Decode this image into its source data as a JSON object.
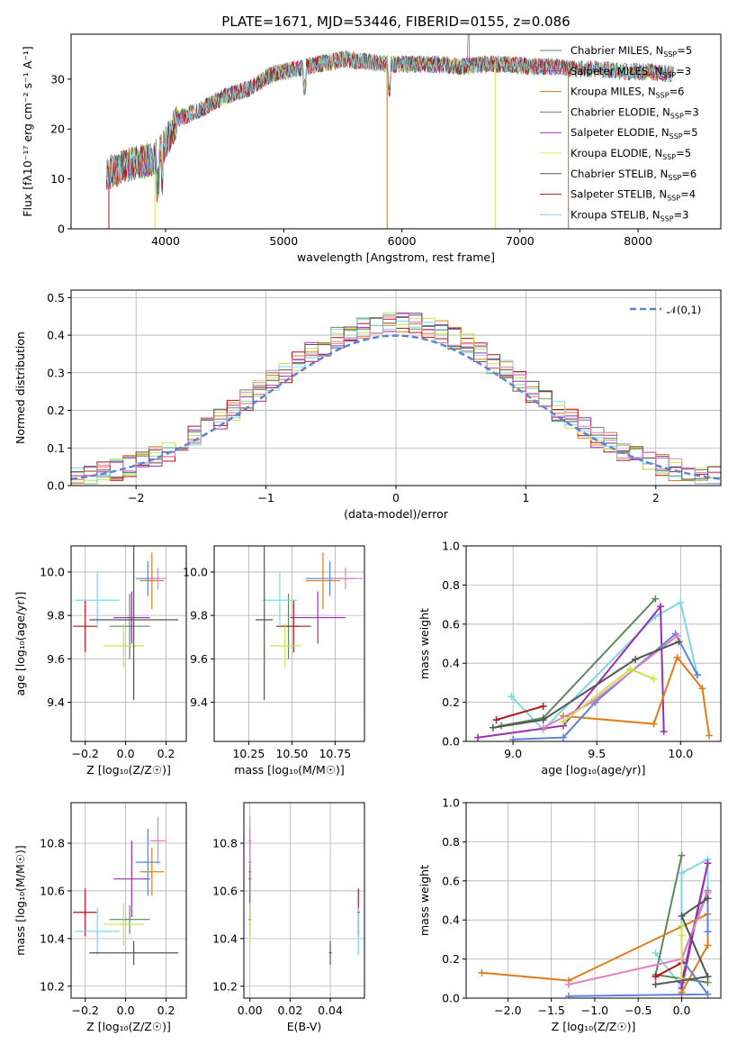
{
  "title": "PLATE=1671, MJD=53446, FIBERID=0155, z=0.086",
  "colors": {
    "c1": "#5c8a5c",
    "c2": "#9b2eb0",
    "c3": "#e07b1a",
    "c4": "#5c8a5c",
    "c5": "#9b2eb0",
    "c6": "#c9e34a",
    "c7": "#555555",
    "c8": "#b3121a",
    "c9": "#7fd6e4",
    "blue": "#5b84d6",
    "pink": "#e37fbf",
    "dash": "#5b84d6"
  },
  "chart_data": [
    {
      "id": "spectrum",
      "type": "line",
      "title": "PLATE=1671, MJD=53446, FIBERID=0155, z=0.086",
      "xlabel": "wavelength [Angstrom, rest frame]",
      "ylabel": "Flux [fλ10⁻¹⁷ erg cm⁻² s⁻¹ A⁻¹]",
      "xlim": [
        3200,
        8700
      ],
      "ylim": [
        0,
        39
      ],
      "xticks": [
        "4000",
        "5000",
        "6000",
        "7000",
        "8000"
      ],
      "yticks": [
        "0",
        "10",
        "20",
        "30"
      ],
      "grid": false,
      "legend_position": "top-right",
      "series": [
        {
          "name": "Chabrier MILES, N_SSP=5",
          "color": "#5c8a5c"
        },
        {
          "name": "Salpeter MILES, N_SSP=3",
          "color": "#9b2eb0"
        },
        {
          "name": "Kroupa MILES, N_SSP=6",
          "color": "#b3821a"
        },
        {
          "name": "Chabrier ELODIE, N_SSP=3",
          "color": "#5c8a5c"
        },
        {
          "name": "Salpeter ELODIE, N_SSP=5",
          "color": "#9b2eb0"
        },
        {
          "name": "Kroupa ELODIE, N_SSP=5",
          "color": "#e0e05a"
        },
        {
          "name": "Chabrier STELIB, N_SSP=6",
          "color": "#555555"
        },
        {
          "name": "Salpeter STELIB, N_SSP=4",
          "color": "#b3121a"
        },
        {
          "name": "Kroupa STELIB, N_SSP=3",
          "color": "#7fd6e4"
        }
      ],
      "continuum": {
        "x": [
          3500,
          3700,
          3900,
          4000,
          4100,
          4300,
          4500,
          4700,
          4900,
          5100,
          5300,
          5500,
          5700,
          5900,
          6100,
          6300,
          6500,
          6700,
          6900,
          7100,
          7300,
          7500,
          7700,
          7900,
          8100,
          8300
        ],
        "y": [
          11,
          13,
          14,
          17,
          22,
          24,
          26.5,
          28,
          31,
          32,
          33,
          34,
          33.5,
          33,
          33,
          33,
          32.5,
          33,
          33,
          32.5,
          32.5,
          32,
          32,
          31.5,
          31.5,
          31
        ]
      }
    },
    {
      "id": "residuals",
      "type": "bar",
      "xlabel": "(data-model)/error",
      "ylabel": "Normed distribution",
      "xlim": [
        -2.5,
        2.5
      ],
      "ylim": [
        0,
        0.52
      ],
      "xticks": [
        "−2",
        "−1",
        "0",
        "1",
        "2"
      ],
      "yticks": [
        "0.0",
        "0.1",
        "0.2",
        "0.3",
        "0.4",
        "0.5"
      ],
      "grid": true,
      "legend_position": "top-right",
      "legend": "𝒩(0,1)",
      "bin_width": 0.1,
      "bins_start": -2.5
    },
    {
      "id": "age-vs-Z",
      "type": "scatter",
      "xlabel": "Z [log₁₀(Z/Z☉)]",
      "ylabel": "age  [log₁₀(age/yr)]",
      "xlim": [
        -0.27,
        0.3
      ],
      "ylim": [
        9.22,
        10.12
      ],
      "xticks": [
        "−0.2",
        "0.0",
        "0.2"
      ],
      "yticks": [
        "9.4",
        "9.6",
        "9.8",
        "10.0"
      ],
      "grid": true
    },
    {
      "id": "age-vs-mass",
      "type": "scatter",
      "xlabel": "mass [log₁₀(M/M☉)]",
      "xlim": [
        10.05,
        10.92
      ],
      "ylim": [
        9.22,
        10.12
      ],
      "xticks": [
        "10.25",
        "10.50",
        "10.75"
      ],
      "yticks": [
        "9.4",
        "9.6",
        "9.8",
        "10.0"
      ],
      "grid": true
    },
    {
      "id": "weight-vs-age",
      "type": "line",
      "xlabel": "age  [log₁₀(age/yr)]",
      "ylabel": "mass weight",
      "xlim": [
        8.72,
        10.24
      ],
      "ylim": [
        0,
        1
      ],
      "xticks": [
        "9.0",
        "9.5",
        "10.0"
      ],
      "yticks": [
        "0.0",
        "0.2",
        "0.4",
        "0.6",
        "0.8",
        "1.0"
      ],
      "grid": true
    },
    {
      "id": "mass-vs-Z",
      "type": "scatter",
      "xlabel": "Z [log₁₀(Z/Z☉)]",
      "ylabel": "mass [log₁₀(M/M☉)]",
      "xlim": [
        -0.27,
        0.3
      ],
      "ylim": [
        10.15,
        10.97
      ],
      "xticks": [
        "−0.2",
        "0.0",
        "0.2"
      ],
      "yticks": [
        "10.2",
        "10.4",
        "10.6",
        "10.8"
      ],
      "grid": true
    },
    {
      "id": "mass-vs-ebv",
      "type": "scatter",
      "xlabel": "E(B-V)",
      "xlim": [
        -0.003,
        0.057
      ],
      "ylim": [
        10.15,
        10.97
      ],
      "xticks": [
        "0.00",
        "0.02",
        "0.04"
      ],
      "yticks": [
        "10.2",
        "10.4",
        "10.6",
        "10.8"
      ],
      "grid": true
    },
    {
      "id": "weight-vs-Z",
      "type": "line",
      "xlabel": "Z [log₁₀(Z/Z☉)]",
      "ylabel": "mass weight",
      "xlim": [
        -2.48,
        0.45
      ],
      "ylim": [
        0,
        1
      ],
      "xticks": [
        "−2.0",
        "−1.5",
        "−1.0",
        "−0.5",
        "0.0"
      ],
      "yticks": [
        "0.0",
        "0.2",
        "0.4",
        "0.6",
        "0.8",
        "1.0"
      ],
      "grid": true
    }
  ],
  "hist_series": [
    {
      "color": "#5c8a5c",
      "seed": 1
    },
    {
      "color": "#9b2eb0",
      "seed": 2
    },
    {
      "color": "#e07b1a",
      "seed": 3
    },
    {
      "color": "#b3121a",
      "seed": 4
    },
    {
      "color": "#c9e34a",
      "seed": 5
    },
    {
      "color": "#7fd6e4",
      "seed": 6
    },
    {
      "color": "#555555",
      "seed": 7
    },
    {
      "color": "#e37fbf",
      "seed": 8
    }
  ],
  "ssp_points": [
    {
      "color": "#5c8a5c",
      "Z": 0.02,
      "dZ": 0.1,
      "age": 9.75,
      "dage": 0.15,
      "mass": 10.48,
      "dmass": 0.06,
      "ebv": 0.0
    },
    {
      "color": "#9b2eb0",
      "Z": 0.03,
      "dZ": 0.09,
      "age": 9.79,
      "dage": 0.12,
      "mass": 10.65,
      "dmass": 0.16,
      "ebv": 0.0
    },
    {
      "color": "#e07b1a",
      "Z": 0.13,
      "dZ": 0.06,
      "age": 9.96,
      "dage": 0.13,
      "mass": 10.68,
      "dmass": 0.1,
      "ebv": 0.0
    },
    {
      "color": "#5b84d6",
      "Z": 0.11,
      "dZ": 0.06,
      "age": 9.97,
      "dage": 0.08,
      "mass": 10.72,
      "dmass": 0.14,
      "ebv": 0.0
    },
    {
      "color": "#e37fbf",
      "Z": 0.16,
      "dZ": 0.04,
      "age": 9.97,
      "dage": 0.05,
      "mass": 10.81,
      "dmass": 0.1,
      "ebv": 0.0
    },
    {
      "color": "#b3121a",
      "Z": -0.2,
      "dZ": 0.06,
      "age": 9.75,
      "dage": 0.12,
      "mass": 10.51,
      "dmass": 0.1,
      "ebv": 0.054
    },
    {
      "color": "#c9e34a",
      "Z": -0.01,
      "dZ": 0.1,
      "age": 9.66,
      "dage": 0.1,
      "mass": 10.46,
      "dmass": 0.09,
      "ebv": 0.0
    },
    {
      "color": "#7fd6e4",
      "Z": -0.14,
      "dZ": 0.11,
      "age": 9.87,
      "dage": 0.13,
      "mass": 10.43,
      "dmass": 0.1,
      "ebv": 0.054
    },
    {
      "color": "#555555",
      "Z": 0.04,
      "dZ": 0.22,
      "age": 9.78,
      "dage": 0.37,
      "mass": 10.34,
      "dmass": 0.05,
      "ebv": 0.04
    }
  ],
  "weight_series": [
    {
      "color": "#7fd6e4",
      "age": [
        8.99,
        9.18,
        9.85,
        10.0,
        10.1
      ],
      "Z": [
        -0.3,
        0.0,
        0.0,
        0.3,
        0.3
      ],
      "w": [
        0.23,
        0.06,
        0.64,
        0.71,
        0.34
      ]
    },
    {
      "color": "#5c8a5c",
      "age": [
        8.93,
        9.18,
        9.85
      ],
      "Z": [
        0.3,
        -0.3,
        0.0
      ],
      "w": [
        0.08,
        0.12,
        0.73
      ]
    },
    {
      "color": "#9b2eb0",
      "age": [
        8.79,
        9.3,
        9.88,
        9.9
      ],
      "Z": [
        0.0,
        0.0,
        0.3,
        0.0
      ],
      "w": [
        0.02,
        0.08,
        0.69,
        0.05
      ]
    },
    {
      "color": "#e07b1a",
      "age": [
        9.3,
        9.84,
        9.98,
        10.13,
        10.17
      ],
      "Z": [
        -2.3,
        -1.3,
        0.3,
        0.3,
        0.0
      ],
      "w": [
        0.13,
        0.09,
        0.43,
        0.27,
        0.03
      ]
    },
    {
      "color": "#5b84d6",
      "age": [
        9.0,
        9.3,
        9.49,
        9.97,
        10.1
      ],
      "Z": [
        -1.3,
        0.3,
        0.0,
        0.3,
        0.3
      ],
      "w": [
        0.01,
        0.02,
        0.2,
        0.55,
        0.34
      ]
    },
    {
      "color": "#e37fbf",
      "age": [
        9.18,
        9.47,
        9.98
      ],
      "Z": [
        -1.3,
        0.0,
        0.3
      ],
      "w": [
        0.07,
        0.2,
        0.54
      ]
    },
    {
      "color": "#b3121a",
      "age": [
        8.9,
        9.18
      ],
      "Z": [
        -0.3,
        0.0
      ],
      "w": [
        0.11,
        0.18
      ]
    },
    {
      "color": "#c9e34a",
      "age": [
        9.3,
        9.7,
        9.84
      ],
      "Z": [
        0.0,
        0.0,
        0.0
      ],
      "w": [
        0.1,
        0.37,
        0.32
      ]
    },
    {
      "color": "#555555",
      "age": [
        8.88,
        9.18,
        9.73,
        9.99
      ],
      "Z": [
        -0.3,
        0.3,
        0.0,
        0.3
      ],
      "w": [
        0.07,
        0.11,
        0.42,
        0.51
      ]
    }
  ]
}
